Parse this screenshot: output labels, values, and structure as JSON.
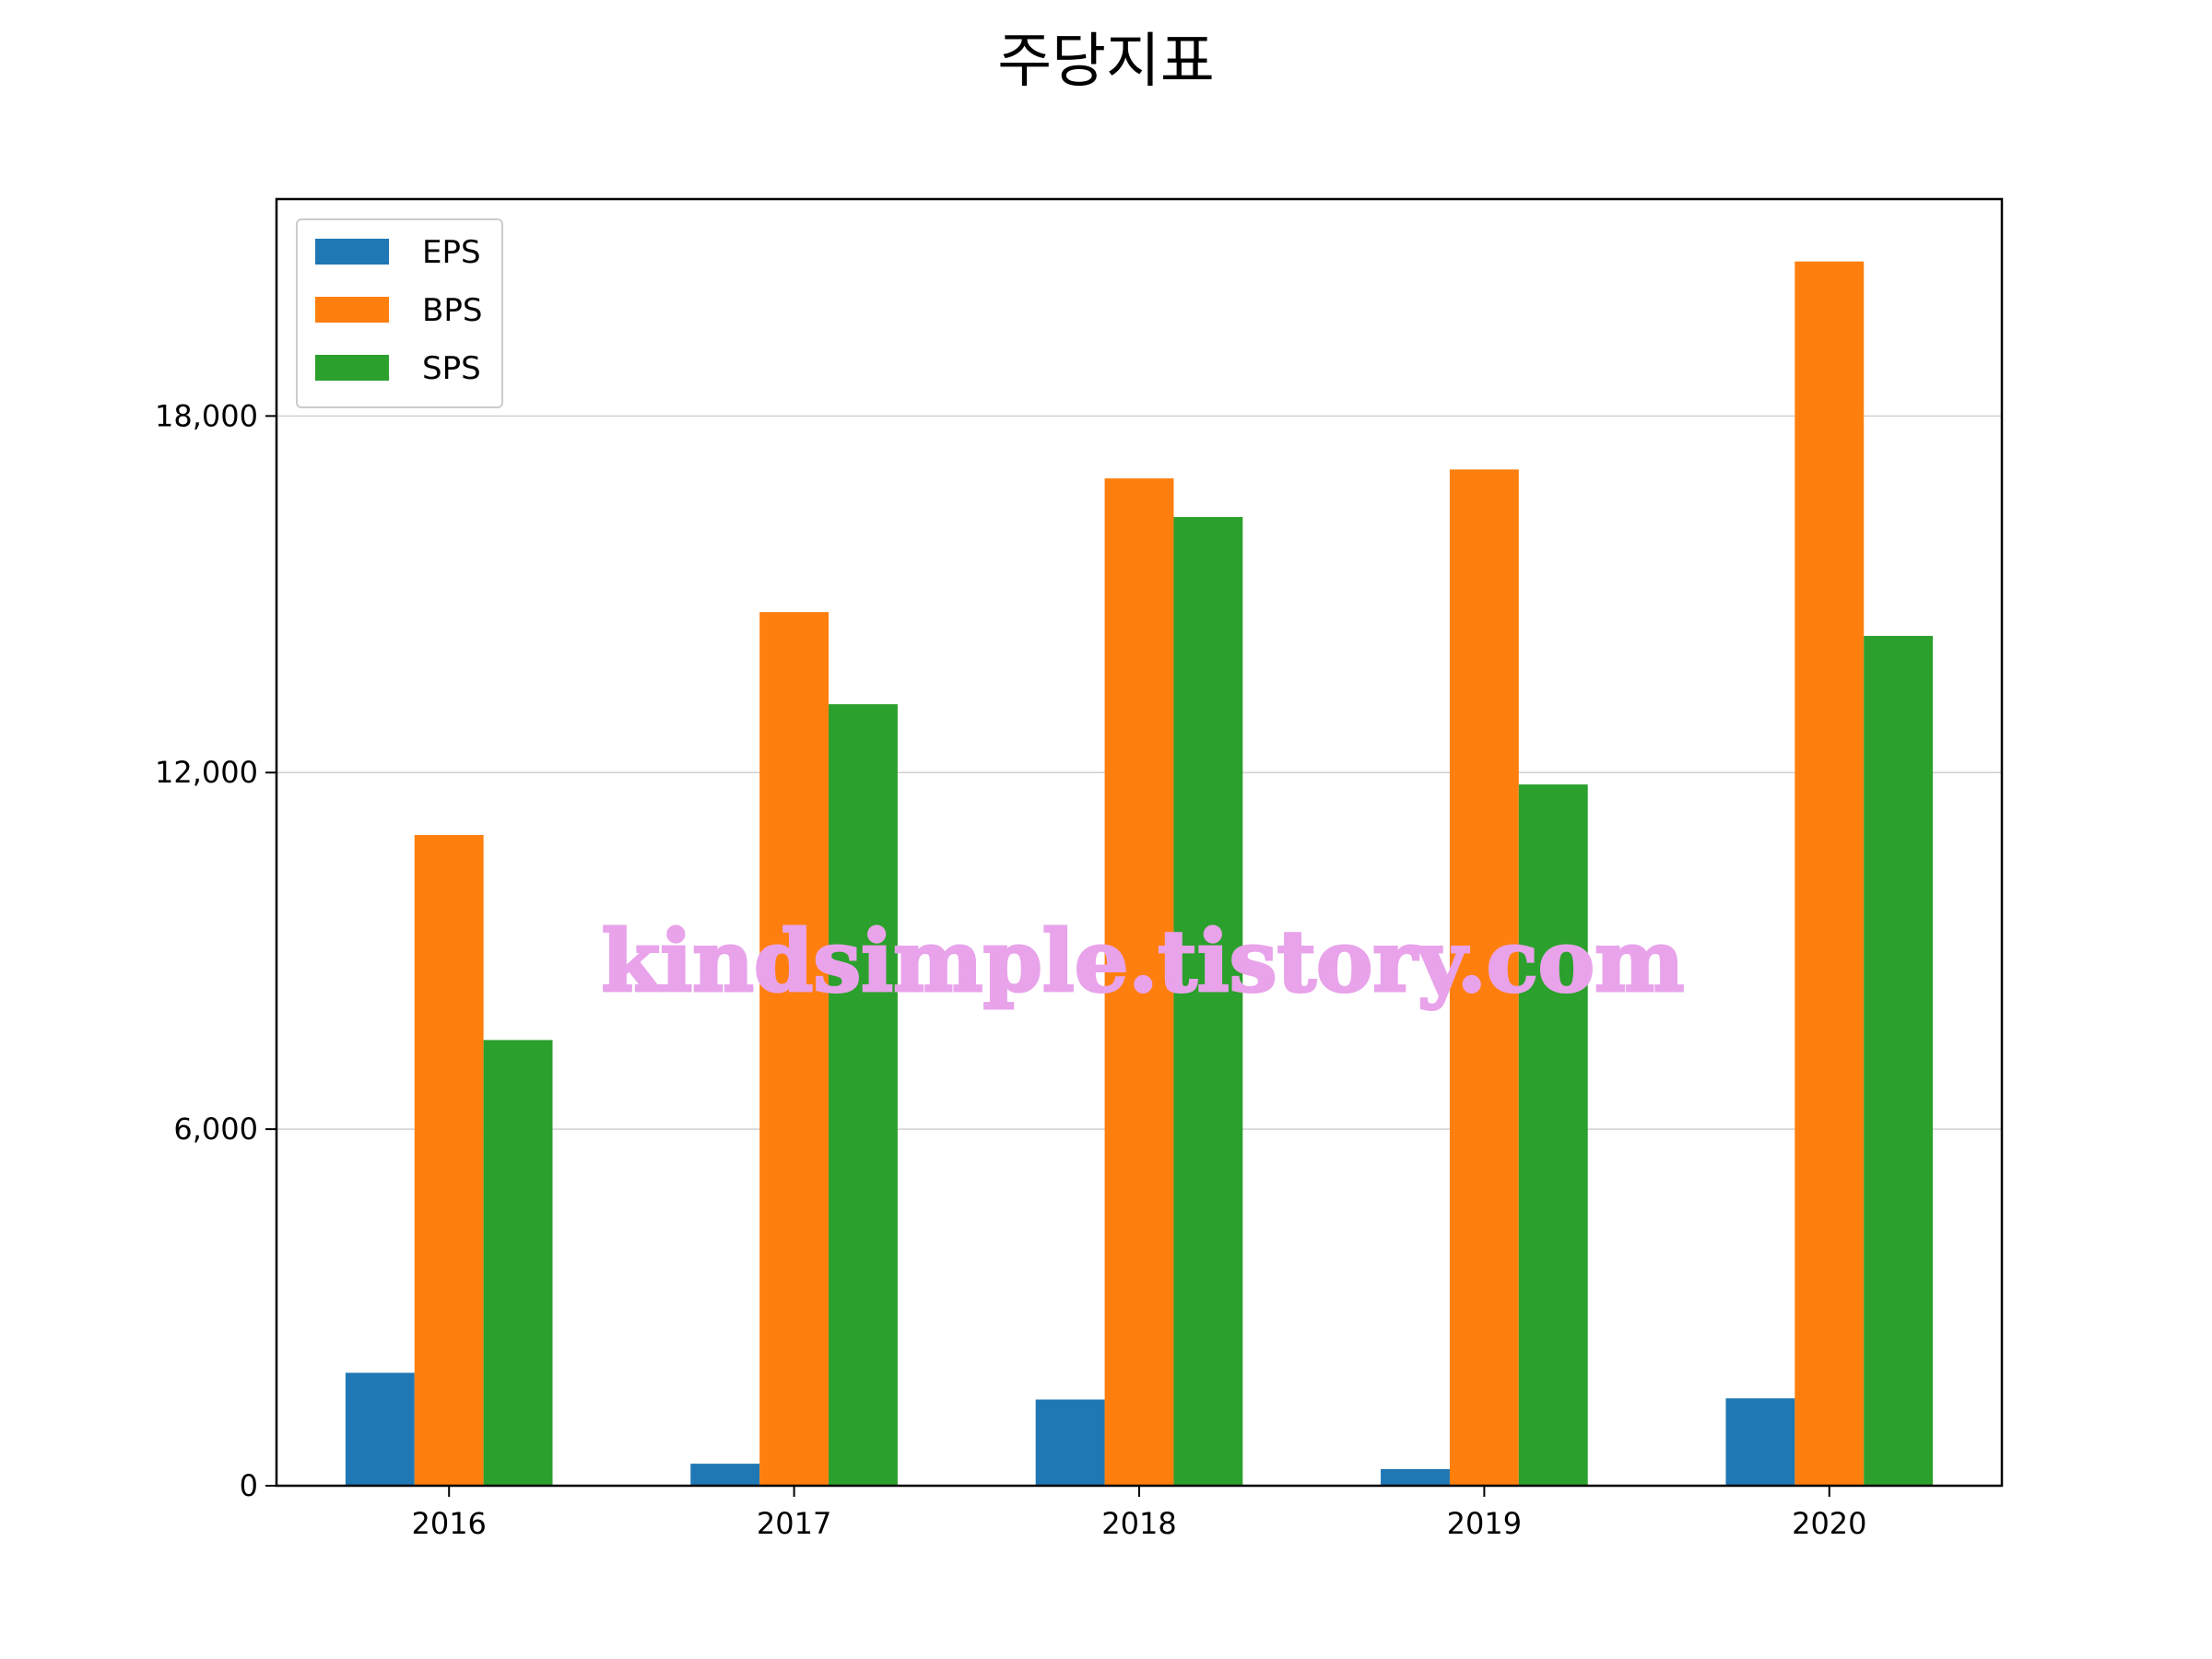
{
  "chart_data": {
    "type": "bar",
    "title": "주당지표",
    "xlabel": "",
    "ylabel": "",
    "categories": [
      "2016",
      "2017",
      "2018",
      "2019",
      "2020"
    ],
    "series": [
      {
        "name": "EPS",
        "color": "#1f77b4",
        "values": [
          1900,
          370,
          1450,
          280,
          1470
        ]
      },
      {
        "name": "BPS",
        "color": "#ff7f0e",
        "values": [
          10950,
          14700,
          16950,
          17100,
          20600
        ]
      },
      {
        "name": "SPS",
        "color": "#2ca02c",
        "values": [
          7500,
          13150,
          16300,
          11800,
          14300
        ]
      }
    ],
    "ylim": [
      0,
      21650
    ],
    "yticks": [
      0,
      6000,
      12000,
      18000
    ],
    "ytick_labels": [
      "0",
      "6,000",
      "12,000",
      "18,000"
    ],
    "grid": "y",
    "legend_position": "upper left"
  },
  "watermark": {
    "text": "kindsimple.tistory.com",
    "color": "#e8a3ea"
  }
}
